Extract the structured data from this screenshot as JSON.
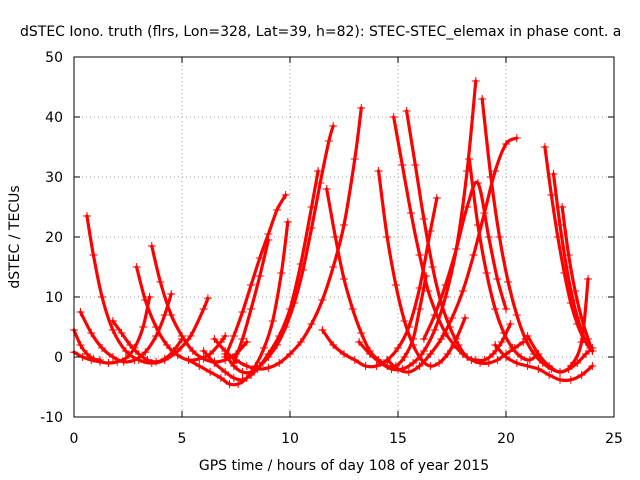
{
  "chart_data": {
    "type": "scatter",
    "title": "dSTEC Iono. truth (flrs, Lon=328, Lat=39, h=82): STEC-STEC_elemax in phase cont. a",
    "xlabel": "GPS time / hours of day 108 of year 2015",
    "ylabel": "dSTEC  / TECUs",
    "xlim": [
      0,
      25
    ],
    "ylim": [
      -10,
      50
    ],
    "xticks": [
      0,
      5,
      10,
      15,
      20,
      25
    ],
    "yticks": [
      -10,
      0,
      10,
      20,
      30,
      40,
      50
    ],
    "grid": true,
    "legend": "none",
    "color": "#ff0000",
    "marker": "plus",
    "series": [
      {
        "x": [
          0.0,
          0.3,
          0.6,
          0.9,
          1.2
        ],
        "y": [
          4.5,
          2.0,
          0.5,
          -0.3,
          -0.5
        ]
      },
      {
        "x": [
          0.0,
          0.4,
          0.8,
          1.2,
          1.6,
          2.0,
          2.4,
          2.8,
          3.2,
          3.5
        ],
        "y": [
          0.8,
          0.0,
          -0.5,
          -0.8,
          -1.0,
          -0.8,
          -0.2,
          1.5,
          5.0,
          10.0
        ]
      },
      {
        "x": [
          0.3,
          0.8,
          1.3,
          1.8,
          2.3,
          2.8,
          3.3,
          3.8,
          4.2,
          4.5
        ],
        "y": [
          7.5,
          4.0,
          1.5,
          0.0,
          -0.8,
          -0.5,
          0.8,
          3.5,
          7.0,
          10.5
        ]
      },
      {
        "x": [
          0.6,
          0.9,
          1.3,
          1.8,
          2.4,
          3.0,
          3.6,
          4.2,
          4.8,
          5.4,
          6.0,
          6.2
        ],
        "y": [
          23.5,
          17.0,
          10.0,
          4.5,
          1.0,
          -0.5,
          -1.0,
          -0.5,
          1.0,
          3.5,
          8.0,
          9.8
        ]
      },
      {
        "x": [
          1.8,
          2.2,
          2.6,
          3.0,
          3.4,
          3.8,
          4.2,
          4.6,
          5.0
        ],
        "y": [
          6.0,
          4.0,
          2.0,
          0.5,
          -0.5,
          -0.8,
          -0.3,
          1.0,
          3.0
        ]
      },
      {
        "x": [
          2.9,
          3.3,
          3.8,
          4.3,
          4.8,
          5.3,
          5.8,
          6.3,
          6.8,
          7.0
        ],
        "y": [
          15.0,
          9.5,
          5.0,
          2.0,
          0.3,
          -0.5,
          -0.3,
          0.5,
          2.5,
          3.5
        ]
      },
      {
        "x": [
          3.6,
          4.0,
          4.5,
          5.0,
          5.5,
          6.0,
          6.5,
          7.0,
          7.5,
          8.0
        ],
        "y": [
          18.5,
          12.5,
          7.0,
          3.5,
          1.0,
          -0.3,
          -0.8,
          -0.5,
          0.5,
          2.5
        ]
      },
      {
        "x": [
          5.3,
          5.8,
          6.3,
          6.8,
          7.2,
          7.6,
          8.0,
          8.4,
          8.8,
          9.2,
          9.6,
          9.9
        ],
        "y": [
          -0.5,
          -1.5,
          -2.5,
          -3.5,
          -4.5,
          -4.5,
          -3.5,
          -1.5,
          1.5,
          6.0,
          14.0,
          22.5
        ]
      },
      {
        "x": [
          6.0,
          6.5,
          7.0,
          7.4,
          7.8,
          8.2,
          8.6,
          9.0,
          9.5,
          10.0,
          10.5,
          11.0,
          11.3
        ],
        "y": [
          1.0,
          -1.0,
          -2.5,
          -3.5,
          -3.8,
          -3.0,
          -1.5,
          0.5,
          3.5,
          8.0,
          15.5,
          25.0,
          31.0
        ]
      },
      {
        "x": [
          7.0,
          7.4,
          7.8,
          8.2,
          8.6,
          9.0,
          9.4,
          9.8,
          10.2,
          10.6,
          11.0,
          11.4,
          11.8,
          12.0
        ],
        "y": [
          0.5,
          -1.5,
          -2.5,
          -2.5,
          -1.5,
          0.0,
          2.0,
          5.0,
          9.0,
          14.5,
          21.5,
          29.0,
          36.0,
          38.5
        ]
      },
      {
        "x": [
          6.5,
          7.0,
          7.5,
          8.0,
          8.5,
          9.0,
          9.5,
          10.0,
          10.5,
          11.0,
          11.5,
          12.0,
          12.5,
          13.0,
          13.3
        ],
        "y": [
          3.0,
          1.0,
          -0.5,
          -1.5,
          -2.0,
          -1.8,
          -1.0,
          0.5,
          2.5,
          5.5,
          9.5,
          15.0,
          22.0,
          33.0,
          41.5
        ]
      },
      {
        "x": [
          7.0,
          7.4,
          7.8,
          8.2,
          8.6,
          9.0,
          9.4,
          9.8
        ],
        "y": [
          0.0,
          3.5,
          7.5,
          12.0,
          16.5,
          20.5,
          24.5,
          27.0
        ]
      },
      {
        "x": [
          7.4,
          7.8,
          8.2,
          8.6,
          9.0
        ],
        "y": [
          -1.0,
          3.0,
          8.0,
          13.5,
          19.5
        ]
      },
      {
        "x": [
          11.5,
          12.0,
          12.5,
          13.0,
          13.5,
          14.0,
          14.5,
          15.0,
          15.5,
          16.0,
          16.5,
          16.8
        ],
        "y": [
          4.5,
          2.0,
          0.5,
          -0.5,
          -1.5,
          -1.5,
          -0.5,
          1.5,
          5.0,
          11.5,
          21.0,
          26.5
        ]
      },
      {
        "x": [
          13.2,
          13.7,
          14.2,
          14.7,
          15.2,
          15.7,
          16.2,
          16.7,
          17.2,
          17.7,
          18.2,
          18.6
        ],
        "y": [
          2.5,
          0.5,
          -1.0,
          -2.0,
          -2.0,
          -1.0,
          1.0,
          4.5,
          10.0,
          18.0,
          31.0,
          46.0
        ]
      },
      {
        "x": [
          14.5,
          15.0,
          15.5,
          16.0,
          16.5,
          17.0,
          17.5,
          18.0,
          18.5,
          19.0,
          19.5,
          20.0,
          20.5
        ],
        "y": [
          -0.5,
          -2.0,
          -2.5,
          -1.5,
          0.5,
          3.0,
          6.5,
          11.0,
          17.0,
          24.0,
          31.0,
          35.5,
          36.5
        ]
      },
      {
        "x": [
          11.7,
          12.1,
          12.5,
          12.9,
          13.3,
          13.7,
          14.1,
          14.5,
          14.9,
          15.3,
          15.7,
          16.0,
          16.3
        ],
        "y": [
          28.0,
          20.0,
          13.0,
          8.0,
          4.0,
          1.0,
          -0.5,
          -1.5,
          -1.5,
          0.0,
          3.0,
          8.0,
          13.5
        ]
      },
      {
        "x": [
          14.1,
          14.5,
          14.9,
          15.3,
          15.7,
          16.1,
          16.5,
          16.9,
          17.3,
          17.7,
          18.1
        ],
        "y": [
          31.0,
          20.0,
          12.0,
          6.0,
          2.0,
          -0.5,
          -1.5,
          -1.0,
          0.5,
          3.0,
          6.5
        ]
      },
      {
        "x": [
          15.4,
          15.8,
          16.2,
          16.6,
          17.0,
          17.4,
          17.8,
          18.2,
          18.6,
          19.0,
          19.4,
          19.8,
          20.2
        ],
        "y": [
          41.0,
          32.0,
          23.0,
          15.0,
          9.0,
          5.0,
          2.0,
          0.0,
          -0.5,
          -0.5,
          0.5,
          2.5,
          5.5
        ]
      },
      {
        "x": [
          14.8,
          15.2,
          15.6,
          16.0,
          16.4,
          16.8,
          17.2,
          17.6,
          18.0,
          18.4,
          18.8,
          19.2,
          19.6,
          20.0,
          20.4,
          20.8
        ],
        "y": [
          40.0,
          32.0,
          24.0,
          17.0,
          11.0,
          7.0,
          4.0,
          2.0,
          0.5,
          -0.5,
          -1.0,
          -1.0,
          -0.5,
          0.5,
          1.5,
          2.5
        ]
      },
      {
        "x": [
          18.3,
          18.7,
          19.1,
          19.5,
          19.9,
          20.3,
          20.7,
          21.1,
          21.5
        ],
        "y": [
          33.0,
          22.0,
          14.0,
          8.0,
          4.0,
          1.5,
          0.0,
          -0.5,
          0.5
        ]
      },
      {
        "x": [
          18.9,
          19.3,
          19.7,
          20.1,
          20.5,
          20.9,
          21.3,
          21.7,
          22.1,
          22.5,
          22.9,
          23.3,
          23.7,
          24.0
        ],
        "y": [
          43.0,
          30.0,
          20.0,
          12.5,
          7.0,
          3.0,
          0.5,
          -1.0,
          -2.0,
          -2.5,
          -2.0,
          -1.0,
          0.5,
          1.5
        ]
      },
      {
        "x": [
          16.2,
          16.7,
          17.2,
          17.7,
          18.2,
          18.7,
          19.2,
          19.6,
          20.0
        ],
        "y": [
          3.0,
          7.0,
          12.0,
          18.0,
          25.0,
          29.0,
          20.0,
          13.0,
          8.0
        ]
      },
      {
        "x": [
          19.5,
          20.0,
          20.5,
          21.0,
          21.5,
          22.0,
          22.5,
          23.0,
          23.5,
          24.0
        ],
        "y": [
          2.0,
          0.0,
          -1.0,
          -1.5,
          -2.0,
          -3.0,
          -3.8,
          -3.8,
          -3.0,
          -1.5
        ]
      },
      {
        "x": [
          21.8,
          22.1,
          22.4,
          22.7,
          23.0,
          23.3,
          23.6,
          23.9,
          24.0
        ],
        "y": [
          35.0,
          27.0,
          20.0,
          14.0,
          9.0,
          5.5,
          3.0,
          1.5,
          1.0
        ]
      },
      {
        "x": [
          22.2,
          22.5,
          22.8,
          23.1,
          23.4,
          23.7,
          24.0
        ],
        "y": [
          30.5,
          22.0,
          15.0,
          9.5,
          5.5,
          2.5,
          1.0
        ]
      },
      {
        "x": [
          22.6,
          22.9,
          23.2,
          23.5,
          23.8,
          24.0
        ],
        "y": [
          25.0,
          17.0,
          11.0,
          6.5,
          3.0,
          1.0
        ]
      },
      {
        "x": [
          21.0,
          21.5,
          22.0,
          22.5,
          23.0,
          23.5,
          23.8
        ],
        "y": [
          3.5,
          0.5,
          -1.5,
          -2.5,
          -1.5,
          2.5,
          13.0
        ]
      }
    ]
  }
}
